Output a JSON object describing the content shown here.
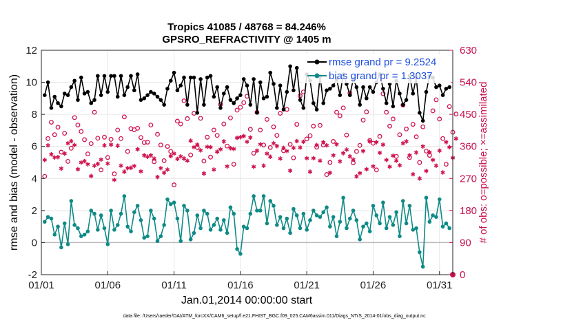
{
  "chart_data": {
    "type": "line",
    "title": "Tropics 41085 / 48768 = 84.246%",
    "subtitle": "GPSRO_REFRACTIVITY @ 1405 m",
    "xlabel": "Jan.01,2014 00:00:00 start",
    "ylabel": "rmse and bias (model - observation)",
    "ylabel_right": "# of obs: o=possible; ×=assimilated",
    "footer": "data file: /Users/raeder/DAI/ATM_forcXX/CAM6_setup/f.e21.FHIST_BGC.f09_025.CAM6assim.011/Diags_NTrS_2014-01/obs_diag_output.nc",
    "ylim": [
      -2,
      12
    ],
    "yticks": [
      "-2",
      "0",
      "2",
      "4",
      "6",
      "8",
      "10",
      "12"
    ],
    "ylim_right": [
      0,
      630
    ],
    "yticks_right": [
      "0",
      "90",
      "180",
      "270",
      "360",
      "450",
      "540",
      "630"
    ],
    "xlim": [
      0,
      124
    ],
    "xticks": [
      {
        "x": 0,
        "label": "01/01"
      },
      {
        "x": 20,
        "label": "01/06"
      },
      {
        "x": 40,
        "label": "01/11"
      },
      {
        "x": 60,
        "label": "01/16"
      },
      {
        "x": 80,
        "label": "01/21"
      },
      {
        "x": 100,
        "label": "01/26"
      },
      {
        "x": 120,
        "label": "01/31"
      }
    ],
    "series": [
      {
        "name": "rmse grand pr = 9.2524",
        "color": "#000000",
        "marker": "circle-filled",
        "axis": "left",
        "values": [
          9.2,
          10.0,
          8.4,
          9.1,
          8.7,
          8.5,
          9.3,
          9.2,
          9.7,
          10.1,
          8.9,
          10.3,
          9.3,
          9.4,
          8.7,
          8.9,
          10.4,
          9.2,
          10.4,
          9.4,
          10.4,
          10.4,
          9.1,
          10.4,
          9.2,
          9.7,
          10.4,
          9.5,
          10.5,
          8.9,
          9.0,
          9.2,
          9.4,
          9.3,
          9.1,
          8.9,
          8.6,
          9.6,
          10.1,
          10.6,
          9.5,
          9.8,
          10.3,
          8.6,
          10.3,
          10.3,
          8.1,
          10.2,
          8.6,
          10.3,
          10.4,
          9.1,
          9.7,
          8.4,
          9.3,
          9.7,
          8.9,
          8.7,
          9.0,
          9.2,
          10.2,
          9.8,
          8.6,
          10.2,
          8.1,
          10.0,
          9.0,
          9.1,
          10.6,
          9.9,
          8.4,
          9.8,
          8.3,
          9.4,
          11.0,
          9.5,
          10.9,
          8.9,
          8.4,
          10.5,
          10.1,
          8.7,
          8.3,
          10.4,
          8.7,
          9.5,
          9.6,
          9.8,
          10.2,
          9.2,
          10.5,
          9.9,
          9.2,
          10.2,
          9.7,
          8.6,
          9.7,
          9.0,
          9.7,
          9.4,
          10.0,
          10.5,
          9.6,
          8.7,
          9.9,
          8.5,
          10.1,
          9.3,
          8.6,
          8.9,
          10.4,
          9.3,
          10.3,
          8.1,
          7.6,
          9.4,
          10.4,
          10.3,
          9.7,
          9.8,
          9.2,
          9.6,
          9.7
        ],
        "unit": "left axis"
      },
      {
        "name": "bias grand pr = 1.3037",
        "color": "#0e8a86",
        "marker": "circle-filled",
        "axis": "left",
        "values": [
          1.3,
          1.6,
          1.5,
          0.5,
          1.0,
          -0.3,
          1.2,
          -0.1,
          2.6,
          1.1,
          0.9,
          0.4,
          0.5,
          0.7,
          2.0,
          1.8,
          0.8,
          1.7,
          0.9,
          -0.1,
          2.0,
          0.8,
          1.1,
          1.8,
          2.9,
          1.0,
          0.7,
          1.9,
          2.3,
          1.4,
          0.3,
          0.4,
          2.0,
          1.5,
          0.1,
          0.4,
          1.1,
          2.7,
          2.4,
          2.5,
          1.5,
          0.1,
          2.3,
          2.0,
          0.2,
          0.6,
          1.7,
          0.9,
          2.0,
          1.8,
          0.8,
          1.1,
          1.5,
          0.8,
          1.4,
          0.6,
          2.2,
          1.8,
          -0.4,
          -0.7,
          1.0,
          0.9,
          1.8,
          2.9,
          2.0,
          2.0,
          2.9,
          1.2,
          2.6,
          2.3,
          1.1,
          1.6,
          0.9,
          1.5,
          0.6,
          2.1,
          1.7,
          0.9,
          1.8,
          0.8,
          1.4,
          2.0,
          1.7,
          1.6,
          1.9,
          2.2,
          1.0,
          1.6,
          0.4,
          1.3,
          2.8,
          0.9,
          1.5,
          2.0,
          1.4,
          0.2,
          1.0,
          1.2,
          0.7,
          2.3,
          1.7,
          1.2,
          2.5,
          0.9,
          1.6,
          1.1,
          1.9,
          0.4,
          2.6,
          1.2,
          2.3,
          0.8,
          0.9,
          -0.6,
          -1.5,
          2.8,
          1.3,
          1.7,
          1.6,
          2.7,
          1.0,
          1.2,
          0.9
        ],
        "unit": "left axis"
      },
      {
        "name": "possible",
        "color": "#d01650",
        "marker": "open-circle",
        "axis": "right",
        "values": [
          276,
          382,
          428,
          393,
          414,
          344,
          397,
          318,
          355,
          441,
          420,
          402,
          379,
          339,
          368,
          456,
          383,
          294,
          386,
          329,
          380,
          283,
          406,
          382,
          443,
          346,
          410,
          407,
          411,
          385,
          371,
          372,
          420,
          317,
          394,
          364,
          320,
          360,
          346,
          252,
          431,
          423,
          488,
          438,
          336,
          453,
          357,
          439,
          319,
          386,
          330,
          406,
          391,
          478,
          423,
          361,
          440,
          310,
          462,
          470,
          483,
          501,
          408,
          341,
          456,
          406,
          364,
          436,
          357,
          415,
          391,
          453,
          348,
          464,
          366,
          328,
          422,
          502,
          513,
          381,
          390,
          417,
          358,
          419,
          364,
          281,
          315,
          374,
          456,
          446,
          468,
          392,
          510,
          314,
          346,
          363,
          434,
          457,
          377,
          369,
          294,
          388,
          508,
          456,
          417,
          437,
          332,
          393,
          476,
          409,
          329,
          422,
          387,
          315,
          415,
          347,
          335,
          460,
          491,
          437,
          382,
          310,
          472,
          400,
          451
        ],
        "unit": "right axis"
      },
      {
        "name": "assimilated",
        "color": "#d01650",
        "marker": "star",
        "axis": "right",
        "values": [
          322,
          363,
          338,
          329,
          330,
          298,
          340,
          369,
          375,
          364,
          296,
          315,
          319,
          310,
          277,
          306,
          311,
          323,
          363,
          312,
          365,
          266,
          362,
          306,
          289,
          299,
          300,
          305,
          352,
          290,
          335,
          331,
          335,
          326,
          274,
          299,
          286,
          295,
          333,
          340,
          325,
          332,
          326,
          320,
          376,
          358,
          365,
          349,
          284,
          359,
          358,
          295,
          345,
          352,
          374,
          304,
          355,
          353,
          384,
          386,
          389,
          373,
          385,
          303,
          348,
          366,
          306,
          340,
          331,
          369,
          361,
          326,
          356,
          347,
          292,
          356,
          375,
          357,
          373,
          327,
          289,
          327,
          364,
          320,
          372,
          363,
          286,
          335,
          366,
          318,
          341,
          351,
          332,
          323,
          276,
          285,
          347,
          296,
          374,
          304,
          372,
          342,
          365,
          322,
          303,
          334,
          320,
          307,
          369,
          374,
          335,
          282,
          343,
          270,
          360,
          291,
          344,
          322,
          306,
          348,
          287,
          372,
          358,
          328,
          382
        ],
        "unit": "right axis"
      }
    ],
    "zero_line": true,
    "grid": true,
    "legend_position": "top-right"
  }
}
